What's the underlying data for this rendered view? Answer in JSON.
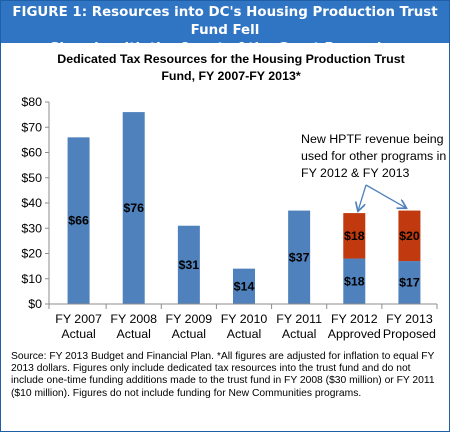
{
  "figure_title": {
    "line1": "FIGURE 1: Resources into DC's Housing Production Trust Fund Fell",
    "line2": "Sharply with the Onset of the Great Recession"
  },
  "chart_data": {
    "type": "bar",
    "stacked": true,
    "title_line1": "Dedicated Tax Resources for the Housing Production Trust",
    "title_line2": "Fund, FY 2007-FY 2013*",
    "categories": [
      [
        "FY 2007",
        "Actual"
      ],
      [
        "FY 2008",
        "Actual"
      ],
      [
        "FY 2009",
        "Actual"
      ],
      [
        "FY 2010",
        "Actual"
      ],
      [
        "FY 2011",
        "Actual"
      ],
      [
        "FY 2012",
        "Approved"
      ],
      [
        "FY 2013",
        "Proposed"
      ]
    ],
    "series": [
      {
        "values": [
          66,
          76,
          31,
          14,
          37,
          18,
          17
        ],
        "labels": [
          "$66",
          "$76",
          "$31",
          "$14",
          "$37",
          "$18",
          "$17"
        ],
        "color": "#4f81bd"
      },
      {
        "values": [
          0,
          0,
          0,
          0,
          0,
          18,
          20
        ],
        "labels": [
          "",
          "",
          "",
          "",
          "",
          "$18",
          "$20"
        ],
        "color": "#c0390f"
      }
    ],
    "yticks": [
      "$0",
      "$10",
      "$20",
      "$30",
      "$40",
      "$50",
      "$60",
      "$70",
      "$80"
    ],
    "ylim": [
      0,
      80
    ],
    "grid": false,
    "annotation": [
      "New HPTF revenue being",
      "used for other programs in",
      "FY 2012 & FY 2013"
    ]
  },
  "source_note": "Source: FY 2013 Budget and Financial Plan.  *All figures are adjusted for inflation to equal FY 2013 dollars.  Figures only include dedicated tax resources into the trust fund and do not include one-time funding additions made to the trust fund in FY 2008 ($30 million) or FY 2011 ($10 million).  Figures do not include funding for New Communities programs.",
  "colors": {
    "banner": "#2f75c4",
    "bar_blue": "#4f81bd",
    "bar_red": "#c0390f",
    "axis": "#8c8c8c"
  }
}
